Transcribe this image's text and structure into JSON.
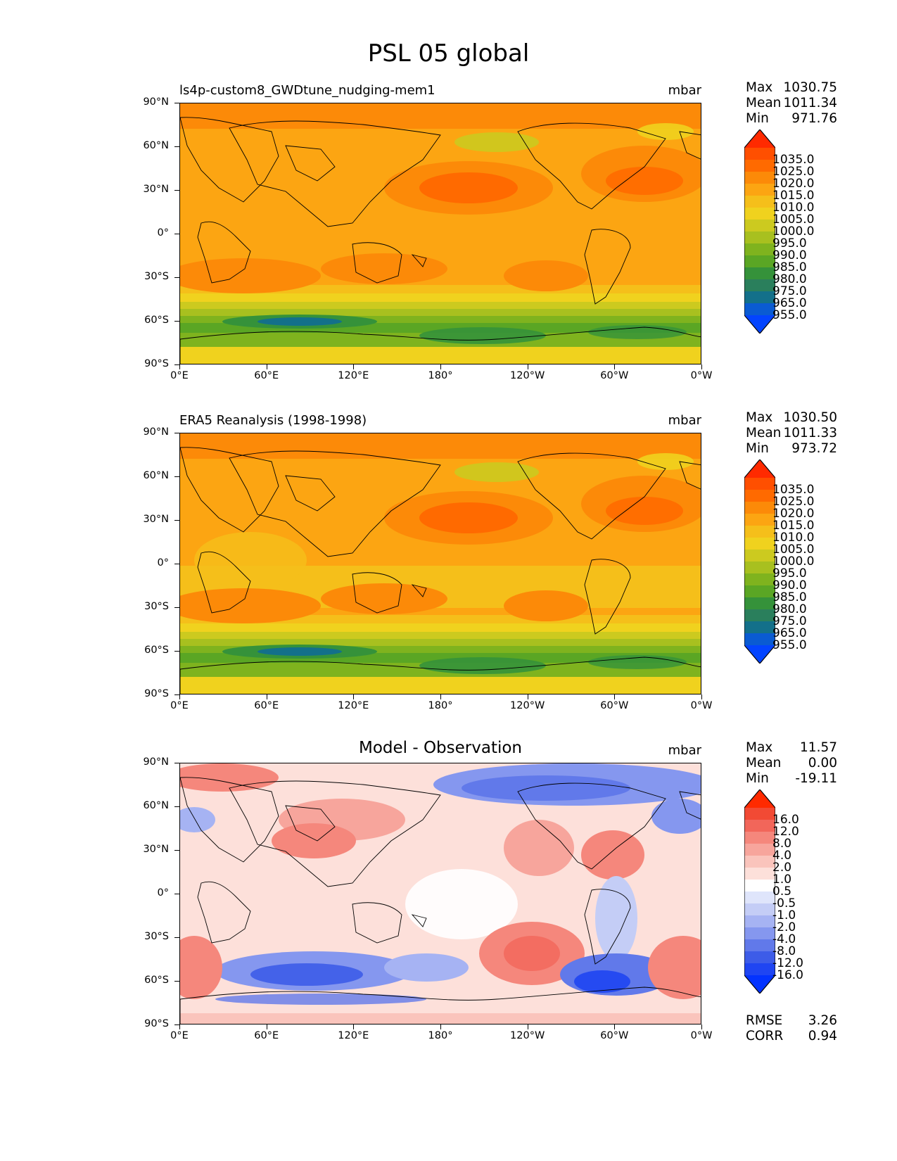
{
  "title": "PSL 05 global",
  "chart_data": [
    {
      "type": "heatmap",
      "name": "model",
      "left_title": "ls4p-custom8_GWDtune_nudging-mem1",
      "units": "mbar",
      "stats": [
        {
          "label": "Max",
          "value": "1030.75"
        },
        {
          "label": "Mean",
          "value": "1011.34"
        },
        {
          "label": "Min",
          "value": "971.76"
        }
      ],
      "colorbar_labels": [
        "1035.0",
        "1025.0",
        "1020.0",
        "1015.0",
        "1010.0",
        "1005.0",
        "1000.0",
        "995.0",
        "990.0",
        "985.0",
        "980.0",
        "975.0",
        "965.0",
        "955.0"
      ],
      "colorbar_colors": [
        "#ff2a00",
        "#ff4f00",
        "#ff6a00",
        "#fc8a08",
        "#fca512",
        "#f5bf1a",
        "#f0d21e",
        "#ccca1f",
        "#a8c01f",
        "#7fb31e",
        "#5aa624",
        "#35923a",
        "#2a7f5c",
        "#13708a",
        "#0a5bd2",
        "#0344ff"
      ],
      "x_ticks": [
        "0°E",
        "60°E",
        "120°E",
        "180°",
        "120°W",
        "60°W",
        "0°W"
      ],
      "y_ticks": [
        "90°N",
        "60°N",
        "30°N",
        "0°",
        "30°S",
        "60°S",
        "90°S"
      ]
    },
    {
      "type": "heatmap",
      "name": "observation",
      "left_title": "ERA5 Reanalysis (1998-1998)",
      "units": "mbar",
      "stats": [
        {
          "label": "Max",
          "value": "1030.50"
        },
        {
          "label": "Mean",
          "value": "1011.33"
        },
        {
          "label": "Min",
          "value": "973.72"
        }
      ],
      "colorbar_labels": [
        "1035.0",
        "1025.0",
        "1020.0",
        "1015.0",
        "1010.0",
        "1005.0",
        "1000.0",
        "995.0",
        "990.0",
        "985.0",
        "980.0",
        "975.0",
        "965.0",
        "955.0"
      ],
      "colorbar_colors": [
        "#ff2a00",
        "#ff4f00",
        "#ff6a00",
        "#fc8a08",
        "#fca512",
        "#f5bf1a",
        "#f0d21e",
        "#ccca1f",
        "#a8c01f",
        "#7fb31e",
        "#5aa624",
        "#35923a",
        "#2a7f5c",
        "#13708a",
        "#0a5bd2",
        "#0344ff"
      ],
      "x_ticks": [
        "0°E",
        "60°E",
        "120°E",
        "180°",
        "120°W",
        "60°W",
        "0°W"
      ],
      "y_ticks": [
        "90°N",
        "60°N",
        "30°N",
        "0°",
        "30°S",
        "60°S",
        "90°S"
      ]
    },
    {
      "type": "heatmap",
      "name": "difference",
      "center_title": "Model - Observation",
      "units": "mbar",
      "stats": [
        {
          "label": "Max",
          "value": "11.57"
        },
        {
          "label": "Mean",
          "value": "0.00"
        },
        {
          "label": "Min",
          "value": "-19.11"
        }
      ],
      "colorbar_labels": [
        "16.0",
        "12.0",
        "8.0",
        "4.0",
        "2.0",
        "1.0",
        "0.5",
        "-0.5",
        "-1.0",
        "-2.0",
        "-4.0",
        "-8.0",
        "-12.0",
        "-16.0"
      ],
      "colorbar_colors": [
        "#ff2a00",
        "#f24a34",
        "#f2665a",
        "#f5877c",
        "#f7a59c",
        "#fac4bc",
        "#fde0da",
        "#ffffff",
        "#dfe5fb",
        "#c4cdf6",
        "#a6b3f3",
        "#8597ef",
        "#6179ea",
        "#3d5ce8",
        "#1f45f2",
        "#0333ff"
      ],
      "x_ticks": [
        "0°E",
        "60°E",
        "120°E",
        "180°",
        "120°W",
        "60°W",
        "0°W"
      ],
      "y_ticks": [
        "90°N",
        "60°N",
        "30°N",
        "0°",
        "30°S",
        "60°S",
        "90°S"
      ],
      "extra_stats": [
        {
          "label": "RMSE",
          "value": "3.26"
        },
        {
          "label": "CORR",
          "value": "0.94"
        }
      ]
    }
  ]
}
